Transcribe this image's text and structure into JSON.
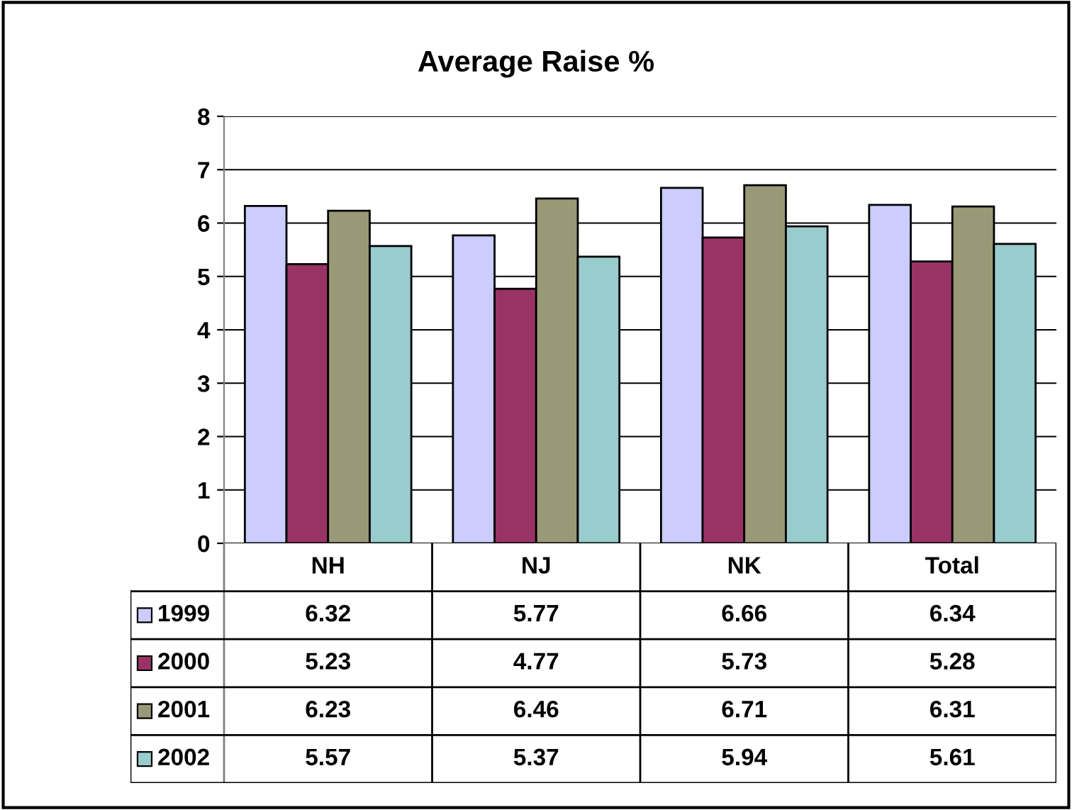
{
  "chart_data": {
    "type": "bar",
    "title": "Average Raise %",
    "categories": [
      "NH",
      "NJ",
      "NK",
      "Total"
    ],
    "series": [
      {
        "name": "1999",
        "color": "#ccccff",
        "values": [
          6.32,
          5.77,
          6.66,
          6.34
        ]
      },
      {
        "name": "2000",
        "color": "#993366",
        "values": [
          5.23,
          4.77,
          5.73,
          5.28
        ]
      },
      {
        "name": "2001",
        "color": "#999977",
        "values": [
          6.23,
          6.46,
          6.71,
          6.31
        ]
      },
      {
        "name": "2002",
        "color": "#99cccc",
        "values": [
          5.57,
          5.37,
          5.94,
          5.61
        ]
      }
    ],
    "ylim": [
      0,
      8
    ],
    "yticks": [
      0,
      1,
      2,
      3,
      4,
      5,
      6,
      7,
      8
    ],
    "grid": "y",
    "data_labels": true,
    "legend": "bottom left"
  }
}
